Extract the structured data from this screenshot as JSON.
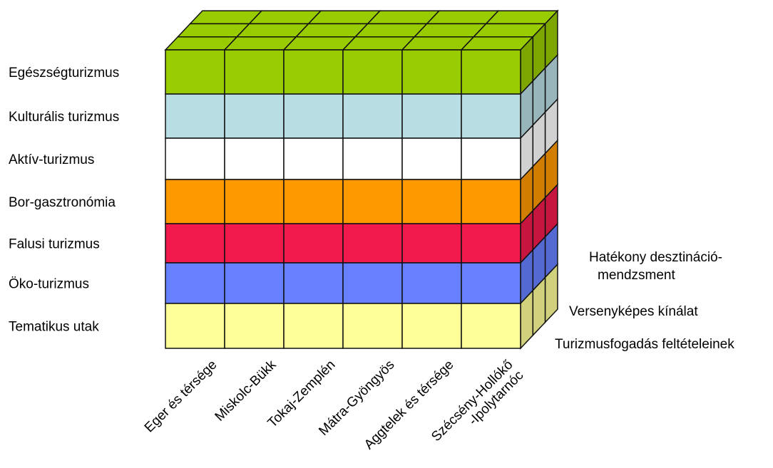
{
  "rows": [
    {
      "label": "Egészségturizmus",
      "color": "#99cc00"
    },
    {
      "label": "Kulturális turizmus",
      "color": "#b8dde3"
    },
    {
      "label": "Aktív-turizmus",
      "color": "#ffffff"
    },
    {
      "label": "Bor-gasztronómia",
      "color": "#ff9900"
    },
    {
      "label": "Falusi turizmus",
      "color": "#f2194c"
    },
    {
      "label": "Öko-turizmus",
      "color": "#6680ff"
    },
    {
      "label": "Tematikus utak",
      "color": "#ffff99"
    }
  ],
  "columns": [
    {
      "line1": "Eger és térsége",
      "line2": ""
    },
    {
      "line1": "Miskolc-Bükk",
      "line2": ""
    },
    {
      "line1": "Tokaj-Zemplén",
      "line2": ""
    },
    {
      "line1": "Mátra-Gyöngyös",
      "line2": ""
    },
    {
      "line1": "Aggtelek és térsége",
      "line2": ""
    },
    {
      "line1": "Szécsény-Hollókő",
      "line2": "-Ipolytarnóc"
    }
  ],
  "depth": [
    {
      "line1": "Turizmusfogadás feltételeinek",
      "line2": ""
    },
    {
      "line1": "Versenyképes kínálat",
      "line2": ""
    },
    {
      "line1": "Hatékony desztináció-",
      "line2": "mendzsment"
    }
  ]
}
